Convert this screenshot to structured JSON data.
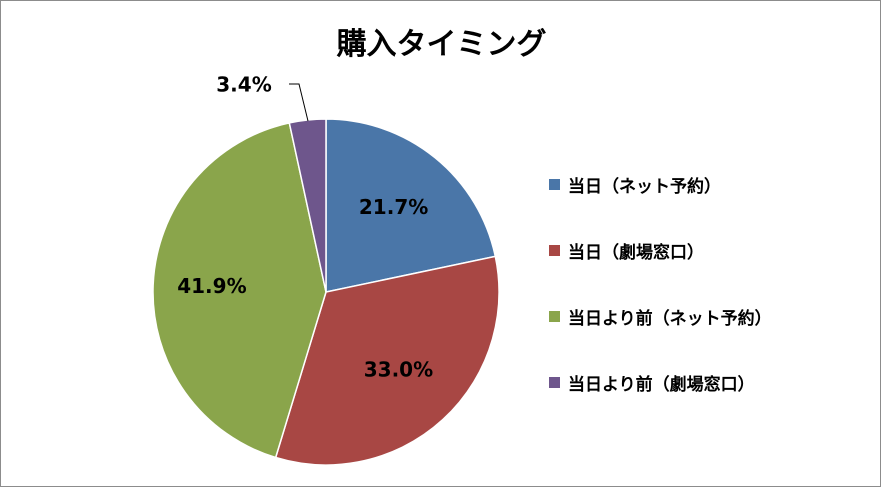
{
  "chart_data": {
    "type": "pie",
    "title": "購入タイミング",
    "categories": [
      "当日（ネット予約）",
      "当日（劇場窓口）",
      "当日より前（ネット予約）",
      "当日より前（劇場窓口）"
    ],
    "values": [
      21.7,
      33.0,
      41.9,
      3.4
    ],
    "data_labels": [
      "21.7%",
      "33.0%",
      "41.9%",
      "3.4%"
    ],
    "colors": [
      "#4a76a8",
      "#a84744",
      "#8aa54b",
      "#6e568c"
    ],
    "legend_position": "right"
  }
}
